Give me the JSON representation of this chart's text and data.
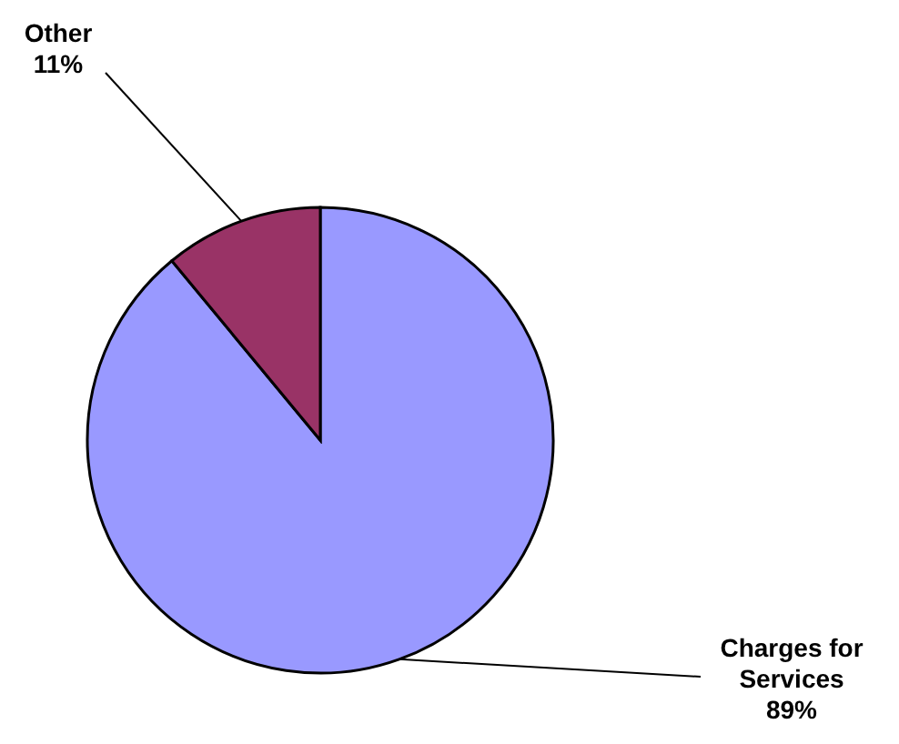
{
  "chart_data": {
    "type": "pie",
    "categories": [
      "Charges for Services",
      "Other"
    ],
    "values": [
      89,
      11
    ],
    "colors": [
      "#9999ff",
      "#993366"
    ],
    "value_labels": [
      "89%",
      "11%"
    ]
  }
}
